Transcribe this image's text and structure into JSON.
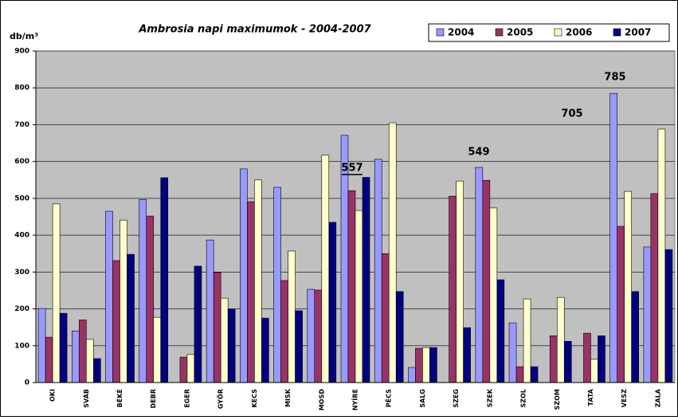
{
  "chart_data": {
    "type": "bar",
    "title": "Ambrosia napi maximumok - 2004-2007",
    "ylabel": "db/m³",
    "categories": [
      "OKI",
      "SVÁB",
      "BÉKÉ",
      "DEBR",
      "EGER",
      "GYŐR",
      "KECS",
      "MISK",
      "MOSD",
      "NYÍRE",
      "PÉCS",
      "SALG",
      "SZEG",
      "SZEK",
      "SZOL",
      "SZOM",
      "TATA",
      "VESZ",
      "ZALA"
    ],
    "series": [
      {
        "name": "2004",
        "color": "#9999ff",
        "values": [
          201,
          140,
          465,
          497,
          0,
          387,
          580,
          530,
          253,
          671,
          606,
          41,
          0,
          584,
          162,
          0,
          0,
          785,
          368
        ]
      },
      {
        "name": "2005",
        "color": "#993366",
        "values": [
          123,
          170,
          331,
          452,
          69,
          299,
          491,
          277,
          251,
          521,
          350,
          93,
          506,
          549,
          43,
          127,
          134,
          424,
          513
        ]
      },
      {
        "name": "2006",
        "color": "#ffffcc",
        "values": [
          485,
          117,
          441,
          177,
          76,
          229,
          550,
          357,
          617,
          467,
          705,
          95,
          547,
          474,
          227,
          231,
          63,
          519,
          688
        ]
      },
      {
        "name": "2007",
        "color": "#000080",
        "values": [
          188,
          65,
          348,
          556,
          316,
          199,
          175,
          195,
          435,
          557,
          247,
          95,
          149,
          279,
          43,
          112,
          127,
          247,
          361
        ]
      }
    ],
    "annotations": [
      "785",
      "705",
      "557",
      "549"
    ],
    "ylim": [
      0,
      900
    ],
    "yticks": [
      0,
      100,
      200,
      300,
      400,
      500,
      600,
      700,
      800,
      900
    ],
    "grid": true,
    "legend": "top-right"
  }
}
